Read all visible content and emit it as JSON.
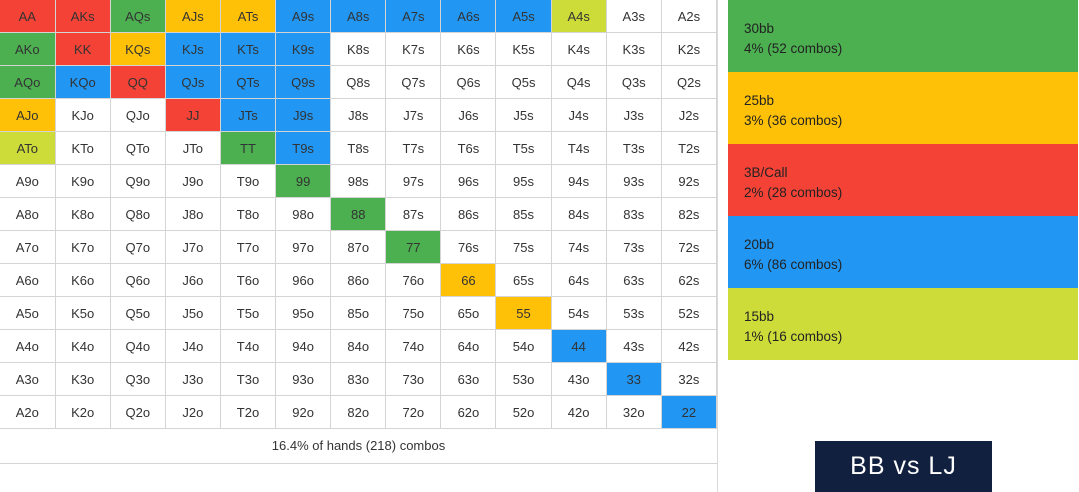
{
  "colors": {
    "green": "#4caf50",
    "orange": "#ffc107",
    "red": "#f44336",
    "blue": "#2196f3",
    "lime": "#cddc39",
    "none": "#ffffff",
    "badge_bg": "#12203f"
  },
  "grid": [
    [
      [
        "AA",
        "red"
      ],
      [
        "AKs",
        "red"
      ],
      [
        "AQs",
        "green"
      ],
      [
        "AJs",
        "orange"
      ],
      [
        "ATs",
        "orange"
      ],
      [
        "A9s",
        "blue"
      ],
      [
        "A8s",
        "blue"
      ],
      [
        "A7s",
        "blue"
      ],
      [
        "A6s",
        "blue"
      ],
      [
        "A5s",
        "blue"
      ],
      [
        "A4s",
        "lime"
      ],
      [
        "A3s",
        "none"
      ],
      [
        "A2s",
        "none"
      ]
    ],
    [
      [
        "AKo",
        "green"
      ],
      [
        "KK",
        "red"
      ],
      [
        "KQs",
        "orange"
      ],
      [
        "KJs",
        "blue"
      ],
      [
        "KTs",
        "blue"
      ],
      [
        "K9s",
        "blue"
      ],
      [
        "K8s",
        "none"
      ],
      [
        "K7s",
        "none"
      ],
      [
        "K6s",
        "none"
      ],
      [
        "K5s",
        "none"
      ],
      [
        "K4s",
        "none"
      ],
      [
        "K3s",
        "none"
      ],
      [
        "K2s",
        "none"
      ]
    ],
    [
      [
        "AQo",
        "green"
      ],
      [
        "KQo",
        "blue"
      ],
      [
        "QQ",
        "red"
      ],
      [
        "QJs",
        "blue"
      ],
      [
        "QTs",
        "blue"
      ],
      [
        "Q9s",
        "blue"
      ],
      [
        "Q8s",
        "none"
      ],
      [
        "Q7s",
        "none"
      ],
      [
        "Q6s",
        "none"
      ],
      [
        "Q5s",
        "none"
      ],
      [
        "Q4s",
        "none"
      ],
      [
        "Q3s",
        "none"
      ],
      [
        "Q2s",
        "none"
      ]
    ],
    [
      [
        "AJo",
        "orange"
      ],
      [
        "KJo",
        "none"
      ],
      [
        "QJo",
        "none"
      ],
      [
        "JJ",
        "red"
      ],
      [
        "JTs",
        "blue"
      ],
      [
        "J9s",
        "blue"
      ],
      [
        "J8s",
        "none"
      ],
      [
        "J7s",
        "none"
      ],
      [
        "J6s",
        "none"
      ],
      [
        "J5s",
        "none"
      ],
      [
        "J4s",
        "none"
      ],
      [
        "J3s",
        "none"
      ],
      [
        "J2s",
        "none"
      ]
    ],
    [
      [
        "ATo",
        "lime"
      ],
      [
        "KTo",
        "none"
      ],
      [
        "QTo",
        "none"
      ],
      [
        "JTo",
        "none"
      ],
      [
        "TT",
        "green"
      ],
      [
        "T9s",
        "blue"
      ],
      [
        "T8s",
        "none"
      ],
      [
        "T7s",
        "none"
      ],
      [
        "T6s",
        "none"
      ],
      [
        "T5s",
        "none"
      ],
      [
        "T4s",
        "none"
      ],
      [
        "T3s",
        "none"
      ],
      [
        "T2s",
        "none"
      ]
    ],
    [
      [
        "A9o",
        "none"
      ],
      [
        "K9o",
        "none"
      ],
      [
        "Q9o",
        "none"
      ],
      [
        "J9o",
        "none"
      ],
      [
        "T9o",
        "none"
      ],
      [
        "99",
        "green"
      ],
      [
        "98s",
        "none"
      ],
      [
        "97s",
        "none"
      ],
      [
        "96s",
        "none"
      ],
      [
        "95s",
        "none"
      ],
      [
        "94s",
        "none"
      ],
      [
        "93s",
        "none"
      ],
      [
        "92s",
        "none"
      ]
    ],
    [
      [
        "A8o",
        "none"
      ],
      [
        "K8o",
        "none"
      ],
      [
        "Q8o",
        "none"
      ],
      [
        "J8o",
        "none"
      ],
      [
        "T8o",
        "none"
      ],
      [
        "98o",
        "none"
      ],
      [
        "88",
        "green"
      ],
      [
        "87s",
        "none"
      ],
      [
        "86s",
        "none"
      ],
      [
        "85s",
        "none"
      ],
      [
        "84s",
        "none"
      ],
      [
        "83s",
        "none"
      ],
      [
        "82s",
        "none"
      ]
    ],
    [
      [
        "A7o",
        "none"
      ],
      [
        "K7o",
        "none"
      ],
      [
        "Q7o",
        "none"
      ],
      [
        "J7o",
        "none"
      ],
      [
        "T7o",
        "none"
      ],
      [
        "97o",
        "none"
      ],
      [
        "87o",
        "none"
      ],
      [
        "77",
        "green"
      ],
      [
        "76s",
        "none"
      ],
      [
        "75s",
        "none"
      ],
      [
        "74s",
        "none"
      ],
      [
        "73s",
        "none"
      ],
      [
        "72s",
        "none"
      ]
    ],
    [
      [
        "A6o",
        "none"
      ],
      [
        "K6o",
        "none"
      ],
      [
        "Q6o",
        "none"
      ],
      [
        "J6o",
        "none"
      ],
      [
        "T6o",
        "none"
      ],
      [
        "96o",
        "none"
      ],
      [
        "86o",
        "none"
      ],
      [
        "76o",
        "none"
      ],
      [
        "66",
        "orange"
      ],
      [
        "65s",
        "none"
      ],
      [
        "64s",
        "none"
      ],
      [
        "63s",
        "none"
      ],
      [
        "62s",
        "none"
      ]
    ],
    [
      [
        "A5o",
        "none"
      ],
      [
        "K5o",
        "none"
      ],
      [
        "Q5o",
        "none"
      ],
      [
        "J5o",
        "none"
      ],
      [
        "T5o",
        "none"
      ],
      [
        "95o",
        "none"
      ],
      [
        "85o",
        "none"
      ],
      [
        "75o",
        "none"
      ],
      [
        "65o",
        "none"
      ],
      [
        "55",
        "orange"
      ],
      [
        "54s",
        "none"
      ],
      [
        "53s",
        "none"
      ],
      [
        "52s",
        "none"
      ]
    ],
    [
      [
        "A4o",
        "none"
      ],
      [
        "K4o",
        "none"
      ],
      [
        "Q4o",
        "none"
      ],
      [
        "J4o",
        "none"
      ],
      [
        "T4o",
        "none"
      ],
      [
        "94o",
        "none"
      ],
      [
        "84o",
        "none"
      ],
      [
        "74o",
        "none"
      ],
      [
        "64o",
        "none"
      ],
      [
        "54o",
        "none"
      ],
      [
        "44",
        "blue"
      ],
      [
        "43s",
        "none"
      ],
      [
        "42s",
        "none"
      ]
    ],
    [
      [
        "A3o",
        "none"
      ],
      [
        "K3o",
        "none"
      ],
      [
        "Q3o",
        "none"
      ],
      [
        "J3o",
        "none"
      ],
      [
        "T3o",
        "none"
      ],
      [
        "93o",
        "none"
      ],
      [
        "83o",
        "none"
      ],
      [
        "73o",
        "none"
      ],
      [
        "63o",
        "none"
      ],
      [
        "53o",
        "none"
      ],
      [
        "43o",
        "none"
      ],
      [
        "33",
        "blue"
      ],
      [
        "32s",
        "none"
      ]
    ],
    [
      [
        "A2o",
        "none"
      ],
      [
        "K2o",
        "none"
      ],
      [
        "Q2o",
        "none"
      ],
      [
        "J2o",
        "none"
      ],
      [
        "T2o",
        "none"
      ],
      [
        "92o",
        "none"
      ],
      [
        "82o",
        "none"
      ],
      [
        "72o",
        "none"
      ],
      [
        "62o",
        "none"
      ],
      [
        "52o",
        "none"
      ],
      [
        "42o",
        "none"
      ],
      [
        "32o",
        "none"
      ],
      [
        "22",
        "blue"
      ]
    ]
  ],
  "footer": "16.4% of hands (218) combos",
  "legend": [
    {
      "label": "30bb",
      "stat": "4% (52 combos)",
      "color": "green"
    },
    {
      "label": "25bb",
      "stat": "3% (36 combos)",
      "color": "orange"
    },
    {
      "label": "3B/Call",
      "stat": "2% (28 combos)",
      "color": "red"
    },
    {
      "label": "20bb",
      "stat": "6% (86 combos)",
      "color": "blue"
    },
    {
      "label": "15bb",
      "stat": "1% (16 combos)",
      "color": "lime"
    }
  ],
  "badge": "BB vs LJ"
}
